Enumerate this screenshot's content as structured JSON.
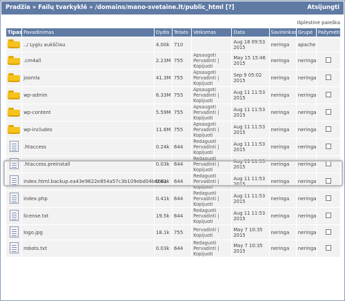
{
  "header": {
    "breadcrumb_root": "Pradžia",
    "breadcrumb_sep": "»",
    "breadcrumb_manager": "Failų tvarkyklė",
    "breadcrumb_path": "/domains/mano-svetaine.lt/public_html",
    "help": "[?]",
    "logout": "Atsijungti"
  },
  "advanced_search": "Išplėstinė paieška",
  "columns": {
    "type": "Tipas",
    "name": "Pavadinimas",
    "size": "Dydis",
    "perms": "Teisės",
    "action": "Veiksmas",
    "date": "Data",
    "owner": "Savininkas",
    "group": "Grupė",
    "mark": "Pažymėti"
  },
  "rows": [
    {
      "icon": "folder",
      "name": "../ Lygiu aukščiau",
      "size": "4.00k",
      "perms": "710",
      "ops": [],
      "date1": "Aug 18 09:53",
      "date2": "2015",
      "owner": "neringa",
      "group": "apache",
      "checkbox": false
    },
    {
      "icon": "folder",
      "name": ".cm4all",
      "size": "2.23M",
      "perms": "755",
      "ops": [
        "Apsaugoti",
        "Pervadinti |",
        "Kopijuoti"
      ],
      "date1": "May 15 15:46",
      "date2": "2015",
      "owner": "neringa",
      "group": "neringa",
      "checkbox": true
    },
    {
      "icon": "folder",
      "name": "joomla",
      "size": "41.3M",
      "perms": "755",
      "ops": [
        "Apsaugoti",
        "Pervadinti |",
        "Kopijuoti"
      ],
      "date1": "Sep 9 05:02",
      "date2": "2015",
      "owner": "neringa",
      "group": "neringa",
      "checkbox": true
    },
    {
      "icon": "folder",
      "name": "wp-admin",
      "size": "6.33M",
      "perms": "755",
      "ops": [
        "Apsaugoti",
        "Pervadinti |",
        "Kopijuoti"
      ],
      "date1": "Aug 11 11:53",
      "date2": "2015",
      "owner": "neringa",
      "group": "neringa",
      "checkbox": true
    },
    {
      "icon": "folder",
      "name": "wp-content",
      "size": "5.59M",
      "perms": "755",
      "ops": [
        "Apsaugoti",
        "Pervadinti |",
        "Kopijuoti"
      ],
      "date1": "Aug 11 11:53",
      "date2": "2015",
      "owner": "neringa",
      "group": "neringa",
      "checkbox": true
    },
    {
      "icon": "folder",
      "name": "wp-includes",
      "size": "11.6M",
      "perms": "755",
      "ops": [
        "Apsaugoti",
        "Pervadinti |",
        "Kopijuoti"
      ],
      "date1": "Aug 11 11:53",
      "date2": "2015",
      "owner": "neringa",
      "group": "neringa",
      "checkbox": true
    },
    {
      "icon": "file",
      "name": ".htaccess",
      "size": "0.24k",
      "perms": "644",
      "ops": [
        "Redaguoti",
        "Pervadinti |",
        "Kopijuoti"
      ],
      "date1": "Aug 11 11:53",
      "date2": "2015",
      "owner": "neringa",
      "group": "neringa",
      "checkbox": true
    },
    {
      "icon": "file",
      "name": ".htaccess.preinstall",
      "size": "0.03k",
      "perms": "644",
      "ops": [
        "Redaguoti",
        "Pervadinti |",
        "Kopijuoti"
      ],
      "date1": "Aug 11 11:53",
      "date2": "2015",
      "owner": "neringa",
      "group": "neringa",
      "checkbox": true
    },
    {
      "icon": "file",
      "name": "index.html.backup.ea43e9622e854a57c3b109ebd04b666a",
      "size": "0.61k",
      "perms": "644",
      "ops": [
        "Redaguoti",
        "Pervadinti |",
        "Kopijuoti"
      ],
      "date1": "Aug 11 11:53",
      "date2": "2015",
      "owner": "neringa",
      "group": "neringa",
      "checkbox": true
    },
    {
      "icon": "file",
      "name": "index.php",
      "size": "0.41k",
      "perms": "644",
      "ops": [
        "Redaguoti",
        "Pervadinti |",
        "Kopijuoti"
      ],
      "date1": "Aug 11 11:53",
      "date2": "2015",
      "owner": "neringa",
      "group": "neringa",
      "checkbox": true
    },
    {
      "icon": "file",
      "name": "license.txt",
      "size": "19.5k",
      "perms": "644",
      "ops": [
        "Redaguoti",
        "Pervadinti |",
        "Kopijuoti"
      ],
      "date1": "Aug 11 11:53",
      "date2": "2015",
      "owner": "neringa",
      "group": "neringa",
      "checkbox": true
    },
    {
      "icon": "file",
      "name": "logo.jpg",
      "size": "18.1k",
      "perms": "755",
      "ops": [
        "Pervadinti |",
        "Kopijuoti"
      ],
      "date1": "May 7 10:35",
      "date2": "2015",
      "owner": "neringa",
      "group": "neringa",
      "checkbox": true
    },
    {
      "icon": "file",
      "name": "robots.txt",
      "size": "0.03k",
      "perms": "644",
      "ops": [
        "Redaguoti",
        "Pervadinti |",
        "Kopijuoti"
      ],
      "date1": "May 7 10:35",
      "date2": "2015",
      "owner": "neringa",
      "group": "neringa",
      "checkbox": true
    }
  ]
}
